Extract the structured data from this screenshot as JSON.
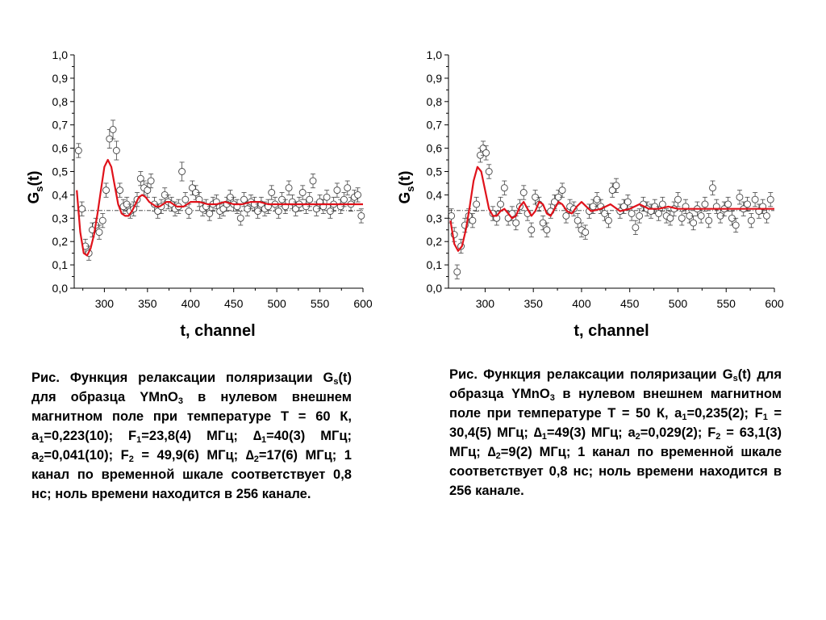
{
  "colors": {
    "fit_line": "#e0121b",
    "markers": "#444444",
    "axes": "#000000",
    "reference_line": "#333333"
  },
  "chart_data": [
    {
      "type": "scatter",
      "xlabel": "t, channel",
      "ylabel": "G",
      "ylabel_sub": "s",
      "ylabel_suffix": "(t)",
      "xlim": [
        265,
        600
      ],
      "ylim": [
        0.0,
        1.0
      ],
      "xticks": [
        300,
        350,
        400,
        450,
        500,
        550,
        600
      ],
      "xtick_labels": [
        "300",
        "350",
        "400",
        "450",
        "500",
        "550",
        "600"
      ],
      "yticks": [
        0.0,
        0.1,
        0.2,
        0.3,
        0.4,
        0.5,
        0.6,
        0.7,
        0.8,
        0.9,
        1.0
      ],
      "ytick_labels": [
        "0,0",
        "0,1",
        "0,2",
        "0,3",
        "0,4",
        "0,5",
        "0,6",
        "0,7",
        "0,8",
        "0,9",
        "1,0"
      ],
      "reference_line": 0.333,
      "grid": false,
      "series": [
        {
          "kind": "points_with_errorbars",
          "x": [
            270,
            274,
            278,
            282,
            286,
            290,
            294,
            298,
            302,
            306,
            310,
            314,
            318,
            322,
            326,
            330,
            334,
            338,
            342,
            346,
            350,
            354,
            358,
            362,
            366,
            370,
            374,
            378,
            382,
            386,
            390,
            394,
            398,
            402,
            406,
            410,
            414,
            418,
            422,
            426,
            430,
            434,
            438,
            442,
            446,
            450,
            454,
            458,
            462,
            466,
            470,
            474,
            478,
            482,
            486,
            490,
            494,
            498,
            502,
            506,
            510,
            514,
            518,
            522,
            526,
            530,
            534,
            538,
            542,
            546,
            550,
            554,
            558,
            562,
            566,
            570,
            574,
            578,
            582,
            586,
            590,
            594,
            598
          ],
          "y": [
            0.59,
            0.34,
            0.18,
            0.15,
            0.25,
            0.27,
            0.24,
            0.29,
            0.42,
            0.64,
            0.68,
            0.59,
            0.42,
            0.35,
            0.36,
            0.33,
            0.34,
            0.38,
            0.47,
            0.43,
            0.42,
            0.46,
            0.36,
            0.33,
            0.35,
            0.4,
            0.37,
            0.36,
            0.34,
            0.35,
            0.5,
            0.38,
            0.33,
            0.43,
            0.41,
            0.38,
            0.34,
            0.35,
            0.32,
            0.36,
            0.37,
            0.33,
            0.34,
            0.36,
            0.39,
            0.36,
            0.35,
            0.3,
            0.38,
            0.34,
            0.37,
            0.36,
            0.33,
            0.36,
            0.34,
            0.35,
            0.41,
            0.36,
            0.33,
            0.38,
            0.35,
            0.43,
            0.37,
            0.34,
            0.36,
            0.41,
            0.35,
            0.38,
            0.46,
            0.34,
            0.37,
            0.35,
            0.39,
            0.33,
            0.36,
            0.42,
            0.35,
            0.38,
            0.43,
            0.36,
            0.39,
            0.4,
            0.31
          ],
          "err": [
            0.03,
            0.03,
            0.03,
            0.03,
            0.03,
            0.03,
            0.03,
            0.03,
            0.03,
            0.04,
            0.04,
            0.04,
            0.03,
            0.03,
            0.03,
            0.03,
            0.03,
            0.03,
            0.03,
            0.03,
            0.03,
            0.03,
            0.03,
            0.03,
            0.03,
            0.03,
            0.03,
            0.03,
            0.03,
            0.03,
            0.04,
            0.03,
            0.03,
            0.03,
            0.03,
            0.03,
            0.03,
            0.03,
            0.03,
            0.03,
            0.03,
            0.03,
            0.03,
            0.03,
            0.03,
            0.03,
            0.03,
            0.03,
            0.03,
            0.03,
            0.03,
            0.03,
            0.03,
            0.03,
            0.03,
            0.03,
            0.03,
            0.03,
            0.03,
            0.03,
            0.03,
            0.03,
            0.03,
            0.03,
            0.03,
            0.03,
            0.03,
            0.03,
            0.03,
            0.03,
            0.03,
            0.03,
            0.03,
            0.03,
            0.03,
            0.03,
            0.03,
            0.03,
            0.03,
            0.03,
            0.03,
            0.03,
            0.03
          ]
        },
        {
          "kind": "fit_line",
          "x": [
            268,
            272,
            276,
            280,
            284,
            288,
            292,
            296,
            300,
            304,
            308,
            312,
            316,
            320,
            324,
            328,
            332,
            336,
            340,
            344,
            348,
            352,
            356,
            360,
            364,
            368,
            372,
            376,
            380,
            384,
            388,
            392,
            396,
            400,
            410,
            420,
            430,
            440,
            450,
            460,
            470,
            480,
            490,
            500,
            520,
            540,
            560,
            580,
            600
          ],
          "y": [
            0.42,
            0.24,
            0.15,
            0.14,
            0.17,
            0.23,
            0.32,
            0.42,
            0.52,
            0.55,
            0.52,
            0.44,
            0.36,
            0.32,
            0.31,
            0.31,
            0.33,
            0.36,
            0.39,
            0.4,
            0.39,
            0.37,
            0.36,
            0.35,
            0.35,
            0.36,
            0.37,
            0.37,
            0.36,
            0.35,
            0.35,
            0.35,
            0.36,
            0.37,
            0.37,
            0.36,
            0.36,
            0.37,
            0.36,
            0.36,
            0.37,
            0.37,
            0.36,
            0.36,
            0.36,
            0.36,
            0.36,
            0.36,
            0.36
          ]
        }
      ]
    },
    {
      "type": "scatter",
      "xlabel": "t, channel",
      "ylabel": "G",
      "ylabel_sub": "s",
      "ylabel_suffix": "(t)",
      "xlim": [
        262,
        600
      ],
      "ylim": [
        0.0,
        1.0
      ],
      "xticks": [
        300,
        350,
        400,
        450,
        500,
        550,
        600
      ],
      "xtick_labels": [
        "300",
        "350",
        "400",
        "450",
        "500",
        "550",
        "600"
      ],
      "yticks": [
        0.0,
        0.1,
        0.2,
        0.3,
        0.4,
        0.5,
        0.6,
        0.7,
        0.8,
        0.9,
        1.0
      ],
      "ytick_labels": [
        "0,0",
        "0,1",
        "0,2",
        "0,3",
        "0,4",
        "0,5",
        "0,6",
        "0,7",
        "0,8",
        "0,9",
        "1,0"
      ],
      "reference_line": 0.333,
      "grid": false,
      "series": [
        {
          "kind": "points_with_errorbars",
          "x": [
            265,
            268,
            271,
            275,
            279,
            283,
            287,
            291,
            295,
            298,
            301,
            304,
            308,
            312,
            316,
            320,
            324,
            328,
            332,
            336,
            340,
            344,
            348,
            352,
            356,
            360,
            364,
            368,
            372,
            376,
            380,
            384,
            388,
            392,
            396,
            400,
            404,
            408,
            412,
            416,
            420,
            424,
            428,
            432,
            436,
            440,
            444,
            448,
            452,
            456,
            460,
            464,
            468,
            472,
            476,
            480,
            484,
            488,
            492,
            496,
            500,
            504,
            508,
            512,
            516,
            520,
            524,
            528,
            532,
            536,
            540,
            544,
            548,
            552,
            556,
            560,
            564,
            568,
            572,
            576,
            580,
            584,
            588,
            592,
            596
          ],
          "y": [
            0.31,
            0.23,
            0.07,
            0.18,
            0.27,
            0.31,
            0.29,
            0.36,
            0.57,
            0.6,
            0.58,
            0.5,
            0.32,
            0.3,
            0.36,
            0.43,
            0.3,
            0.32,
            0.28,
            0.35,
            0.41,
            0.32,
            0.25,
            0.39,
            0.36,
            0.28,
            0.25,
            0.33,
            0.37,
            0.39,
            0.42,
            0.31,
            0.35,
            0.34,
            0.29,
            0.25,
            0.24,
            0.33,
            0.35,
            0.38,
            0.35,
            0.32,
            0.29,
            0.42,
            0.44,
            0.33,
            0.35,
            0.37,
            0.32,
            0.26,
            0.31,
            0.36,
            0.34,
            0.33,
            0.35,
            0.32,
            0.36,
            0.31,
            0.3,
            0.34,
            0.38,
            0.3,
            0.35,
            0.31,
            0.28,
            0.34,
            0.31,
            0.36,
            0.29,
            0.43,
            0.35,
            0.31,
            0.34,
            0.36,
            0.3,
            0.27,
            0.39,
            0.34,
            0.36,
            0.29,
            0.38,
            0.33,
            0.35,
            0.31,
            0.38
          ]
        },
        {
          "kind": "fit_line",
          "x": [
            264,
            268,
            272,
            276,
            280,
            284,
            288,
            292,
            296,
            300,
            304,
            308,
            312,
            316,
            320,
            324,
            328,
            332,
            336,
            340,
            344,
            348,
            352,
            356,
            360,
            364,
            368,
            372,
            376,
            380,
            385,
            390,
            395,
            400,
            405,
            410,
            420,
            430,
            440,
            450,
            460,
            470,
            480,
            490,
            500,
            520,
            540,
            560,
            580,
            600
          ],
          "y": [
            0.29,
            0.19,
            0.16,
            0.18,
            0.25,
            0.35,
            0.46,
            0.52,
            0.5,
            0.42,
            0.34,
            0.31,
            0.31,
            0.33,
            0.34,
            0.32,
            0.3,
            0.31,
            0.35,
            0.37,
            0.34,
            0.31,
            0.33,
            0.37,
            0.36,
            0.32,
            0.31,
            0.34,
            0.37,
            0.36,
            0.33,
            0.32,
            0.35,
            0.37,
            0.35,
            0.33,
            0.34,
            0.36,
            0.33,
            0.34,
            0.36,
            0.34,
            0.34,
            0.35,
            0.34,
            0.34,
            0.34,
            0.34,
            0.34,
            0.34
          ]
        }
      ]
    }
  ],
  "captions": {
    "left": [
      {
        "t": "Рис. Функция релаксации поляризации G"
      },
      {
        "sub": "s"
      },
      {
        "t": "(t) для образца YMnO"
      },
      {
        "sub": "3"
      },
      {
        "t": " в нулевом внешнем магнитном поле при температуре Т = 60 К, a"
      },
      {
        "sub": "1"
      },
      {
        "t": "=0,223(10); F"
      },
      {
        "sub": "1"
      },
      {
        "t": "=23,8(4) МГц; ∆"
      },
      {
        "sub": "1"
      },
      {
        "t": "=40(3) МГц; a"
      },
      {
        "sub": "2"
      },
      {
        "t": "=0,041(10); F"
      },
      {
        "sub": "2"
      },
      {
        "t": " = 49,9(6) МГц; ∆"
      },
      {
        "sub": "2"
      },
      {
        "t": "=17(6) МГц; 1 канал по временной шкале соответствует 0,8 нс; ноль времени находится в 256 канале."
      }
    ],
    "right": [
      {
        "t": "Рис. Функция релаксации поляризации G"
      },
      {
        "sub": "s"
      },
      {
        "t": "(t) для образца YMnO"
      },
      {
        "sub": "3"
      },
      {
        "t": " в нулевом внешнем магнитном поле при температуре Т = 50 К, a"
      },
      {
        "sub": "1"
      },
      {
        "t": "=0,235(2); F"
      },
      {
        "sub": "1"
      },
      {
        "t": " = 30,4(5) МГц; ∆"
      },
      {
        "sub": "1"
      },
      {
        "t": "=49(3) МГц; a"
      },
      {
        "sub": "2"
      },
      {
        "t": "=0,029(2); F"
      },
      {
        "sub": "2"
      },
      {
        "t": " = 63,1(3) МГц; ∆"
      },
      {
        "sub": "2"
      },
      {
        "t": "=9(2) МГц; 1 канал по временной шкале соответствует 0,8 нс; ноль времени находится в 256 канале."
      }
    ]
  }
}
